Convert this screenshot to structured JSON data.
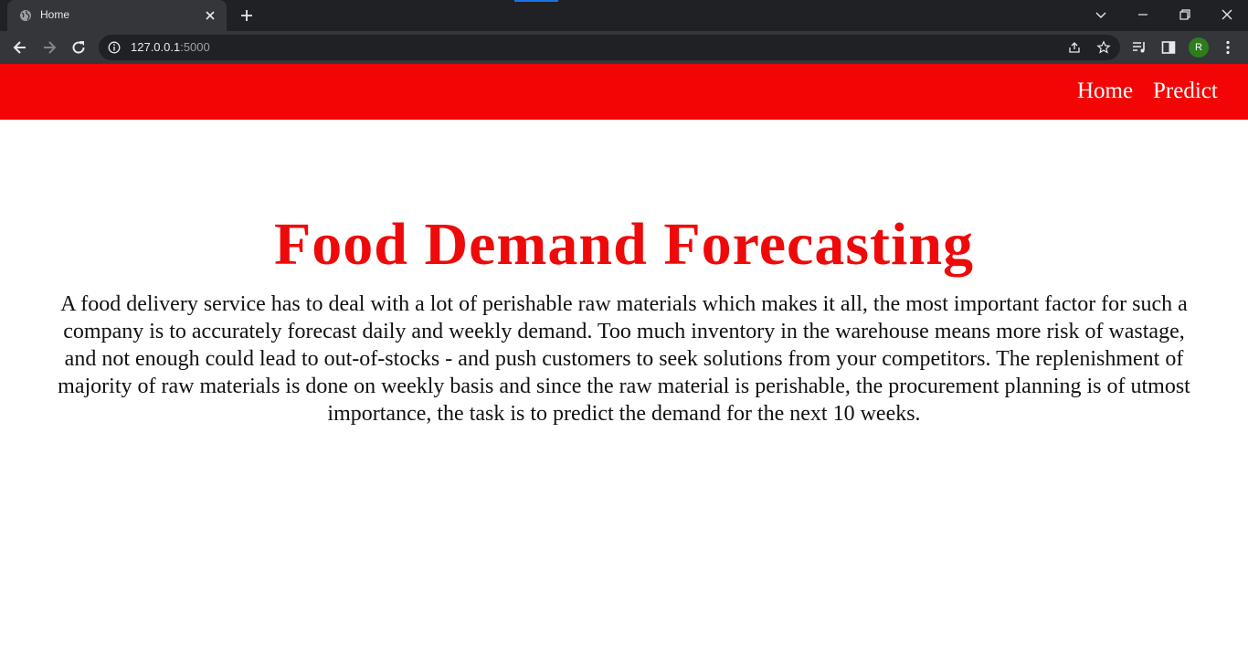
{
  "browser": {
    "tab": {
      "title": "Home",
      "favicon": "globe-icon"
    },
    "address": {
      "host": "127.0.0.1",
      "port": ":5000"
    },
    "profile_initial": "R",
    "accent_color": "#1a73e8"
  },
  "header": {
    "background": "#f30505",
    "nav": [
      {
        "label": "Home"
      },
      {
        "label": "Predict"
      }
    ]
  },
  "main": {
    "title": "Food Demand Forecasting",
    "title_color": "#ee0a0a",
    "description": "A food delivery service has to deal with a lot of perishable raw materials which makes it all, the most important factor for such a company is to accurately forecast daily and weekly demand. Too much inventory in the warehouse means more risk of wastage, and not enough could lead to out-of-stocks - and push customers to seek solutions from your competitors. The replenishment of majority of raw materials is done on weekly basis and since the raw material is perishable, the procurement planning is of utmost importance, the task is to predict the demand for the next 10 weeks."
  }
}
